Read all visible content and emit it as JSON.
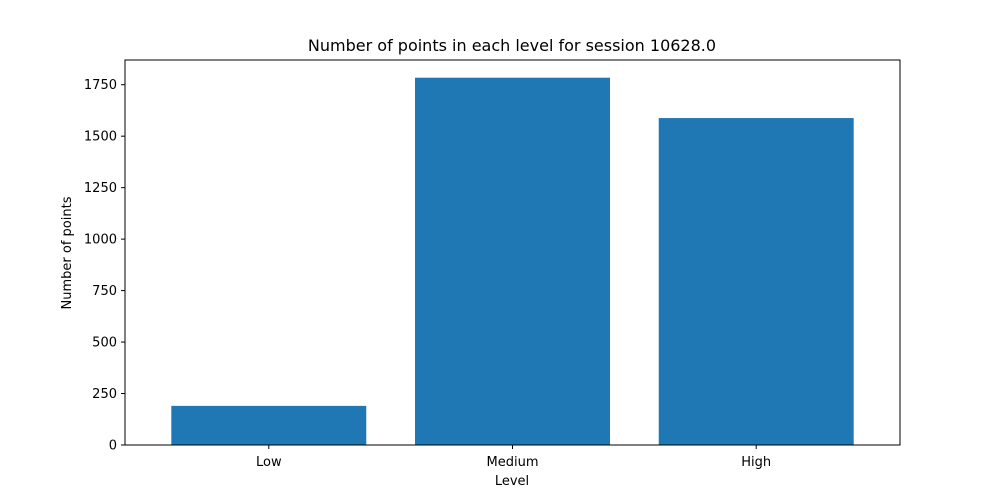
{
  "chart_data": {
    "type": "bar",
    "title": "Number of points in each level for session 10628.0",
    "xlabel": "Level",
    "ylabel": "Number of points",
    "categories": [
      "Low",
      "Medium",
      "High"
    ],
    "values": [
      190,
      1784,
      1588
    ],
    "ylim": [
      0,
      1870
    ],
    "yticks": [
      0,
      250,
      500,
      750,
      1000,
      1250,
      1500,
      1750
    ],
    "grid": false,
    "legend": "none",
    "bar_color": "#1f77b4"
  }
}
